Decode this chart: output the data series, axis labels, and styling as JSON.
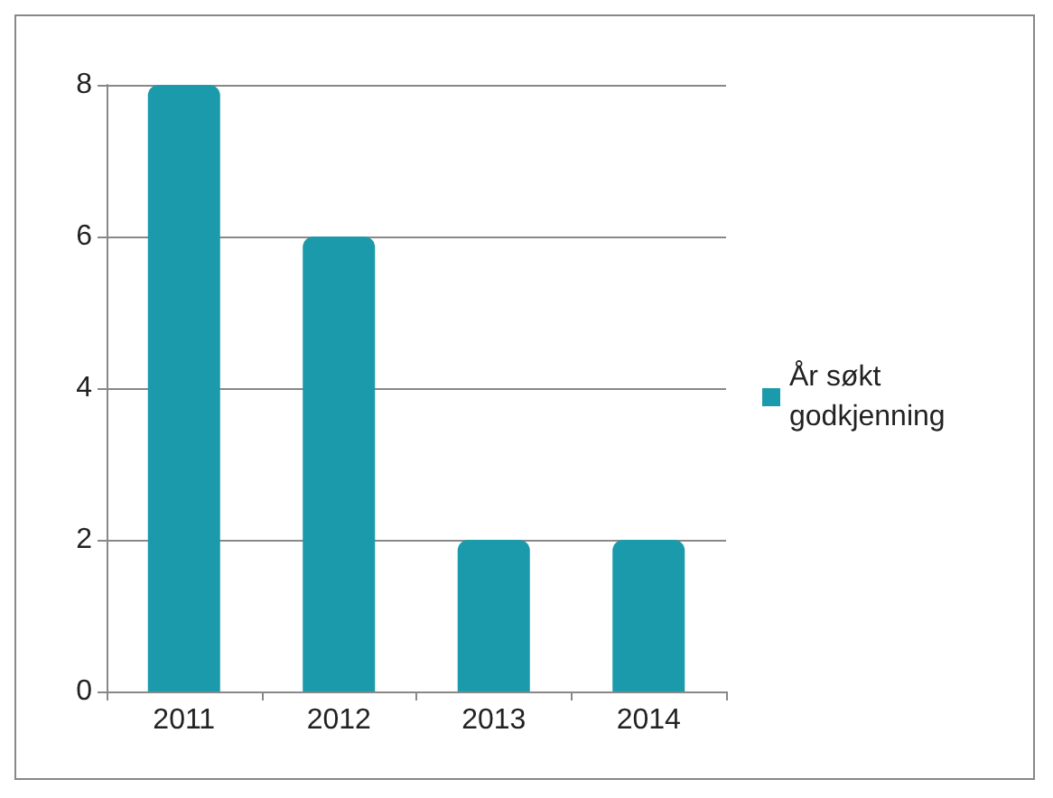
{
  "chart_data": {
    "type": "bar",
    "categories": [
      "2011",
      "2012",
      "2013",
      "2014"
    ],
    "series": [
      {
        "name": "År søkt godkjenning",
        "color": "#1a9aab",
        "values": [
          8,
          6,
          2,
          2
        ]
      }
    ],
    "ylim": [
      0,
      8
    ],
    "yticks": [
      0,
      2,
      4,
      6,
      8
    ],
    "grid": "y",
    "legend": "right"
  }
}
